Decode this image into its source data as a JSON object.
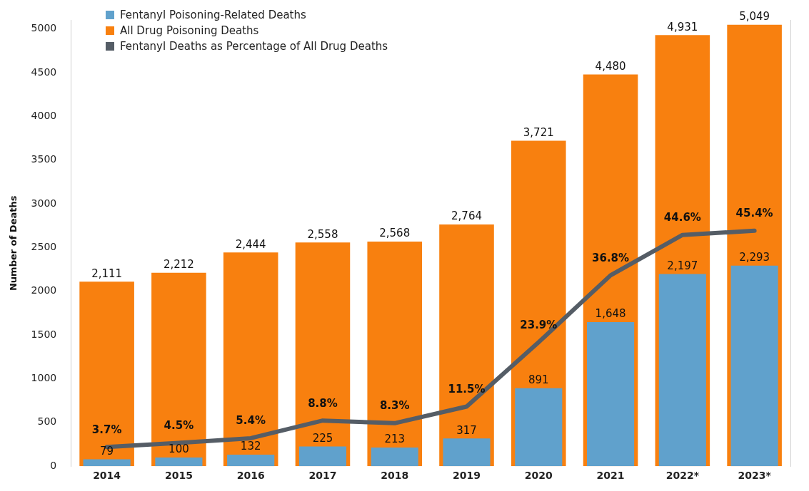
{
  "chart_data": {
    "type": "bar",
    "ylabel": "Number of Deaths",
    "categories": [
      "2014",
      "2015",
      "2016",
      "2017",
      "2018",
      "2019",
      "2020",
      "2021",
      "2022*",
      "2023*"
    ],
    "series": [
      {
        "name": "Fentanyl Poisoning-Related Deaths",
        "color": "#60a1cc",
        "values": [
          79,
          100,
          132,
          225,
          213,
          317,
          891,
          1648,
          2197,
          2293
        ],
        "value_labels": [
          "79",
          "100",
          "132",
          "225",
          "213",
          "317",
          "891",
          "1,648",
          "2,197",
          "2,293"
        ]
      },
      {
        "name": "All Drug Poisoning Deaths",
        "color": "#f8800f",
        "values": [
          2111,
          2212,
          2444,
          2558,
          2568,
          2764,
          3721,
          4480,
          4931,
          5049
        ],
        "value_labels": [
          "2,111",
          "2,212",
          "2,444",
          "2,558",
          "2,568",
          "2,764",
          "3,721",
          "4,480",
          "4,931",
          "5,049"
        ]
      },
      {
        "name": "Fentanyl Deaths as Percentage of All Drug Deaths",
        "type": "line",
        "axis": "y2",
        "color": "#555d66",
        "values": [
          3.7,
          4.5,
          5.4,
          8.8,
          8.3,
          11.5,
          23.9,
          36.8,
          44.6,
          45.4
        ],
        "value_labels": [
          "3.7%",
          "4.5%",
          "5.4%",
          "8.8%",
          "8.3%",
          "11.5%",
          "23.9%",
          "36.8%",
          "44.6%",
          "45.4%"
        ]
      }
    ],
    "ylim": [
      0,
      5100
    ],
    "yticks": [
      0,
      500,
      1000,
      1500,
      2000,
      2500,
      3000,
      3500,
      4000,
      4500,
      5000
    ],
    "y2lim": [
      0,
      86
    ],
    "grid": false,
    "legend": "top left",
    "marker": "none"
  }
}
